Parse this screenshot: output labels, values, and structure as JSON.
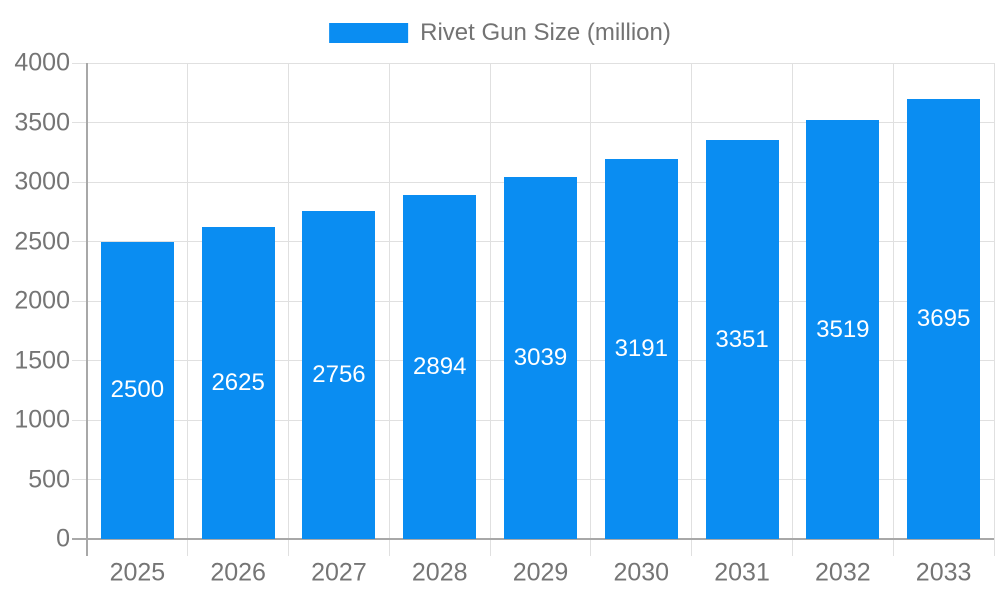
{
  "chart_data": {
    "type": "bar",
    "title": "",
    "legend": {
      "label": "Rivet Gun Size (million)",
      "position": "top"
    },
    "categories": [
      "2025",
      "2026",
      "2027",
      "2028",
      "2029",
      "2030",
      "2031",
      "2032",
      "2033"
    ],
    "series": [
      {
        "name": "Rivet Gun Size (million)",
        "values": [
          2500,
          2625,
          2756,
          2894,
          3039,
          3191,
          3351,
          3519,
          3695
        ]
      }
    ],
    "xlabel": "",
    "ylabel": "",
    "ylim": [
      0,
      4000
    ],
    "ytick_step": 500,
    "ytick_labels": [
      "0",
      "500",
      "1000",
      "1500",
      "2000",
      "2500",
      "3000",
      "3500",
      "4000"
    ],
    "grid": true,
    "value_labels_position": "inside-center",
    "colors": {
      "bar": "#0a8df2",
      "grid": "#e0e0e0",
      "axis": "#a8a8a8",
      "tick_text": "#757575",
      "legend_text": "#737373",
      "value_label": "#ffffff",
      "background": "#ffffff"
    }
  }
}
